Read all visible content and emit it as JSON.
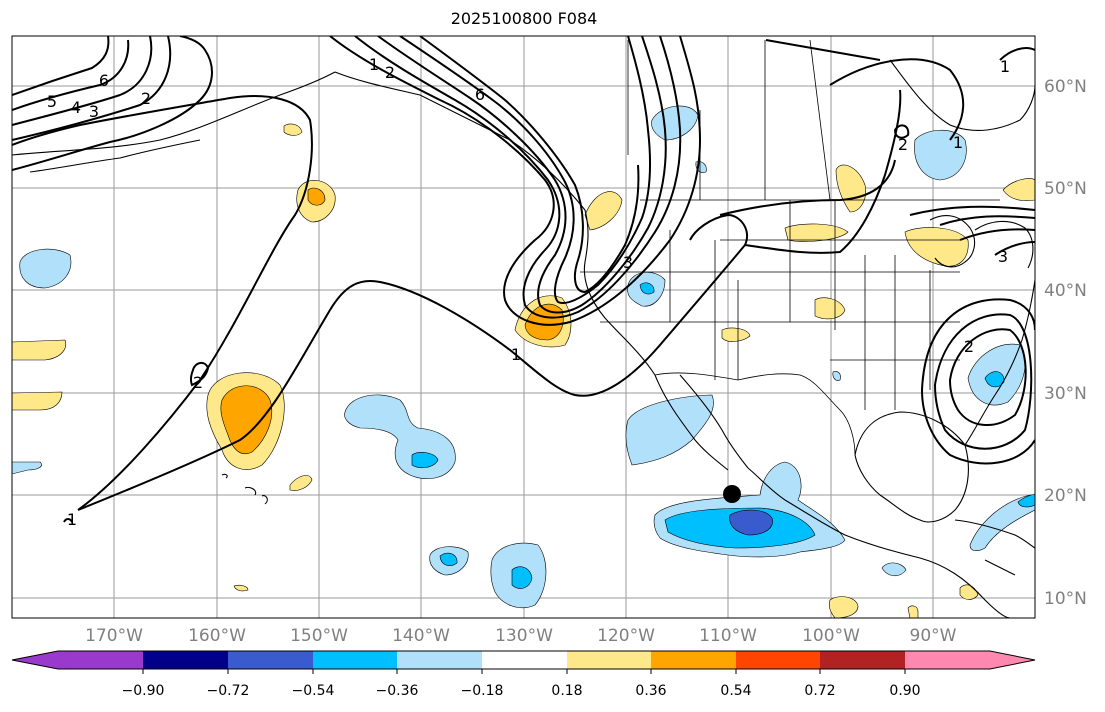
{
  "title": "2025100800 F084",
  "map": {
    "lon_labels": [
      "170°W",
      "160°W",
      "150°W",
      "140°W",
      "130°W",
      "120°W",
      "110°W",
      "100°W",
      "90°W"
    ],
    "lat_labels": [
      "60°N",
      "50°N",
      "40°N",
      "30°N",
      "20°N",
      "10°N"
    ],
    "contour_labels": [
      "6",
      "5",
      "4",
      "3",
      "2",
      "2",
      "1",
      "2",
      "1",
      "1",
      "3",
      "2",
      "1",
      "6",
      "3",
      "2",
      "1"
    ],
    "marker": "black-dot"
  },
  "colorbar": {
    "ticks": [
      "−0.90",
      "−0.72",
      "−0.54",
      "−0.36",
      "−0.18",
      "0.18",
      "0.36",
      "0.54",
      "0.72",
      "0.90"
    ],
    "colors": [
      "#9a3acd",
      "#00008b",
      "#3a5bcd",
      "#00bfff",
      "#b0e0fa",
      "#ffffff",
      "#ffe88a",
      "#ffa500",
      "#ff4500",
      "#b22222",
      "#ff88b0"
    ]
  }
}
